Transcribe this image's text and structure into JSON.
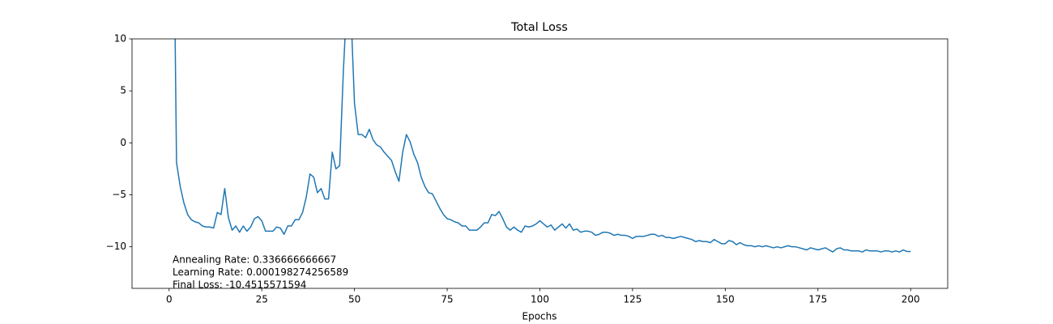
{
  "chart_data": {
    "type": "line",
    "title": "Total Loss",
    "xlabel": "Epochs",
    "annotations": [
      "Annealing Rate: 0.336666666667",
      "Learning Rate: 0.000198274256589",
      "Final Loss: -10.4515571594"
    ],
    "color": "#1f77b4",
    "xlim": [
      -10,
      210
    ],
    "ylim": [
      -14,
      10
    ],
    "xticks": [
      0,
      25,
      50,
      75,
      100,
      125,
      150,
      175,
      200
    ],
    "yticks": [
      {
        "value": -10,
        "label": "−10"
      },
      {
        "value": -5,
        "label": "−5"
      },
      0,
      5,
      10
    ],
    "x": [
      1,
      2,
      3,
      4,
      5,
      6,
      7,
      8,
      9,
      10,
      11,
      12,
      13,
      14,
      15,
      16,
      17,
      18,
      19,
      20,
      21,
      22,
      23,
      24,
      25,
      26,
      27,
      28,
      29,
      30,
      31,
      32,
      33,
      34,
      35,
      36,
      37,
      38,
      39,
      40,
      41,
      42,
      43,
      44,
      45,
      46,
      47,
      48,
      49,
      50,
      51,
      52,
      53,
      54,
      55,
      56,
      57,
      58,
      59,
      60,
      61,
      62,
      63,
      64,
      65,
      66,
      67,
      68,
      69,
      70,
      71,
      72,
      73,
      74,
      75,
      76,
      77,
      78,
      79,
      80,
      81,
      82,
      83,
      84,
      85,
      86,
      87,
      88,
      89,
      90,
      91,
      92,
      93,
      94,
      95,
      96,
      97,
      98,
      99,
      100,
      101,
      102,
      103,
      104,
      105,
      106,
      107,
      108,
      109,
      110,
      111,
      112,
      113,
      114,
      115,
      116,
      117,
      118,
      119,
      120,
      121,
      122,
      123,
      124,
      125,
      126,
      127,
      128,
      129,
      130,
      131,
      132,
      133,
      134,
      135,
      136,
      137,
      138,
      139,
      140,
      141,
      142,
      143,
      144,
      145,
      146,
      147,
      148,
      149,
      150,
      151,
      152,
      153,
      154,
      155,
      156,
      157,
      158,
      159,
      160,
      161,
      162,
      163,
      164,
      165,
      166,
      167,
      168,
      169,
      170,
      171,
      172,
      173,
      174,
      175,
      176,
      177,
      178,
      179,
      180,
      181,
      182,
      183,
      184,
      185,
      186,
      187,
      188,
      189,
      190,
      191,
      192,
      193,
      194,
      195,
      196,
      197,
      198,
      199,
      200
    ],
    "values": [
      30,
      -1.9,
      -4.2,
      -5.8,
      -6.9,
      -7.4,
      -7.6,
      -7.7,
      -8.0,
      -8.1,
      -8.1,
      -8.2,
      -6.7,
      -6.9,
      -4.4,
      -7.2,
      -8.4,
      -8.0,
      -8.6,
      -8.0,
      -8.5,
      -8.1,
      -7.3,
      -7.1,
      -7.5,
      -8.5,
      -8.5,
      -8.5,
      -8.1,
      -8.2,
      -8.8,
      -8.0,
      -8.0,
      -7.4,
      -7.4,
      -6.7,
      -5.2,
      -3.0,
      -3.3,
      -4.8,
      -4.4,
      -5.4,
      -5.4,
      -0.9,
      -2.5,
      -2.2,
      6.9,
      14,
      13,
      3.8,
      0.8,
      0.8,
      0.5,
      1.3,
      0.3,
      -0.2,
      -0.4,
      -0.9,
      -1.3,
      -1.7,
      -2.8,
      -3.7,
      -0.9,
      0.8,
      0.1,
      -1.1,
      -1.9,
      -3.3,
      -4.2,
      -4.8,
      -4.9,
      -5.6,
      -6.3,
      -6.9,
      -7.3,
      -7.4,
      -7.6,
      -7.7,
      -8.0,
      -8.0,
      -8.4,
      -8.4,
      -8.4,
      -8.1,
      -7.7,
      -7.7,
      -6.9,
      -7.0,
      -6.6,
      -7.3,
      -8.1,
      -8.4,
      -8.1,
      -8.4,
      -8.6,
      -8.0,
      -8.1,
      -8.0,
      -7.8,
      -7.5,
      -7.8,
      -8.1,
      -7.9,
      -8.4,
      -8.1,
      -7.8,
      -8.2,
      -7.8,
      -8.4,
      -8.3,
      -8.6,
      -8.5,
      -8.5,
      -8.6,
      -8.9,
      -8.8,
      -8.6,
      -8.6,
      -8.7,
      -8.9,
      -8.8,
      -8.9,
      -8.9,
      -9.0,
      -9.2,
      -9.0,
      -9.0,
      -9.0,
      -8.9,
      -8.8,
      -8.8,
      -9.0,
      -8.9,
      -9.1,
      -9.1,
      -9.2,
      -9.1,
      -9.0,
      -9.1,
      -9.2,
      -9.3,
      -9.5,
      -9.4,
      -9.5,
      -9.5,
      -9.6,
      -9.3,
      -9.5,
      -9.7,
      -9.7,
      -9.4,
      -9.5,
      -9.8,
      -9.6,
      -9.8,
      -9.9,
      -9.9,
      -10.0,
      -9.9,
      -10.0,
      -9.9,
      -10.0,
      -10.1,
      -10.0,
      -10.1,
      -10.0,
      -9.9,
      -10.0,
      -10.0,
      -10.1,
      -10.2,
      -10.3,
      -10.1,
      -10.2,
      -10.3,
      -10.2,
      -10.1,
      -10.3,
      -10.5,
      -10.2,
      -10.1,
      -10.3,
      -10.3,
      -10.4,
      -10.4,
      -10.4,
      -10.5,
      -10.3,
      -10.4,
      -10.4,
      -10.4,
      -10.5,
      -10.4,
      -10.4,
      -10.5,
      -10.4,
      -10.5,
      -10.3,
      -10.45,
      -10.45
    ]
  }
}
